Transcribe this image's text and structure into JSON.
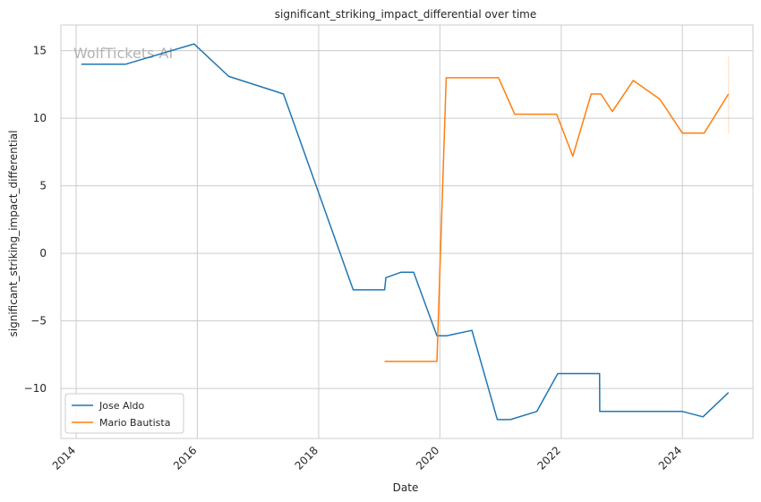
{
  "watermark": "WolfTickets AI",
  "chart_data": {
    "type": "line",
    "title": "significant_striking_impact_differential over time",
    "xlabel": "Date",
    "ylabel": "significant_striking_impact_differential",
    "xlim": [
      "2013-10-01",
      "2025-03-01"
    ],
    "ylim": [
      -13.7,
      16.9
    ],
    "x_ticks": [
      "2014",
      "2016",
      "2018",
      "2020",
      "2022",
      "2024"
    ],
    "y_ticks": [
      -10,
      -5,
      0,
      5,
      10,
      15
    ],
    "grid": true,
    "legend_position": "lower-left",
    "series": [
      {
        "name": "Jose Aldo",
        "color": "#1f77b4",
        "points": [
          [
            "2014-02-01",
            14.0
          ],
          [
            "2014-10-25",
            14.0
          ],
          [
            "2015-12-12",
            15.5
          ],
          [
            "2016-07-09",
            13.1
          ],
          [
            "2017-06-03",
            11.8
          ],
          [
            "2018-07-28",
            -2.7
          ],
          [
            "2019-02-02",
            -2.7
          ],
          [
            "2019-02-10",
            -1.8
          ],
          [
            "2019-05-11",
            -1.4
          ],
          [
            "2019-07-27",
            -1.4
          ],
          [
            "2019-12-14",
            -6.1
          ],
          [
            "2020-02-08",
            -6.1
          ],
          [
            "2020-07-12",
            -5.7
          ],
          [
            "2020-12-12",
            -12.3
          ],
          [
            "2021-03-01",
            -12.3
          ],
          [
            "2021-08-07",
            -11.7
          ],
          [
            "2021-12-11",
            -8.9
          ],
          [
            "2022-08-20",
            -8.9
          ],
          [
            "2022-08-21",
            -11.7
          ],
          [
            "2024-01-01",
            -11.7
          ],
          [
            "2024-05-04",
            -12.1
          ],
          [
            "2024-10-05",
            -10.3
          ]
        ]
      },
      {
        "name": "Mario Bautista",
        "color": "#ff7f0e",
        "points": [
          [
            "2019-02-02",
            -8.0
          ],
          [
            "2019-12-14",
            -8.0
          ],
          [
            "2020-02-08",
            13.0
          ],
          [
            "2020-12-19",
            13.0
          ],
          [
            "2021-03-27",
            10.3
          ],
          [
            "2021-12-04",
            10.3
          ],
          [
            "2022-03-12",
            7.2
          ],
          [
            "2022-07-01",
            11.8
          ],
          [
            "2022-08-28",
            11.8
          ],
          [
            "2022-11-05",
            10.5
          ],
          [
            "2023-03-11",
            12.8
          ],
          [
            "2023-08-19",
            11.4
          ],
          [
            "2024-01-01",
            8.9
          ],
          [
            "2024-05-11",
            8.9
          ],
          [
            "2024-10-05",
            11.8
          ]
        ],
        "band": {
          "x": "2024-10-05",
          "low": 8.9,
          "high": 14.6
        }
      }
    ]
  }
}
